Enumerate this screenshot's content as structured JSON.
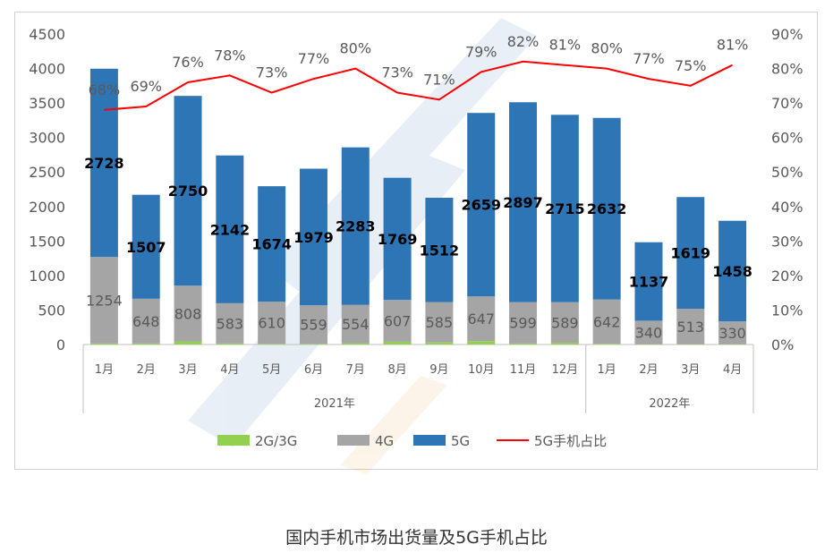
{
  "caption": "国内手机市场出货量及5G手机占比",
  "chart_data": {
    "type": "bar",
    "stacked": true,
    "categories": [
      "1月",
      "2月",
      "3月",
      "4月",
      "5月",
      "6月",
      "7月",
      "8月",
      "9月",
      "10月",
      "11月",
      "12月",
      "1月",
      "2月",
      "3月",
      "4月"
    ],
    "groups": [
      {
        "label": "2021年",
        "count": 12
      },
      {
        "label": "2022年",
        "count": 4
      }
    ],
    "series": [
      {
        "name": "2G/3G",
        "kind": "bar",
        "color": "#92d050",
        "values": [
          15,
          15,
          45,
          15,
          10,
          10,
          20,
          40,
          30,
          50,
          15,
          25,
          10,
          5,
          5,
          5
        ]
      },
      {
        "name": "4G",
        "kind": "bar",
        "color": "#a5a5a5",
        "values": [
          1254,
          648,
          808,
          583,
          610,
          559,
          554,
          607,
          585,
          647,
          599,
          589,
          642,
          340,
          513,
          330
        ]
      },
      {
        "name": "5G",
        "kind": "bar",
        "color": "#2e75b6",
        "values": [
          2728,
          1507,
          2750,
          2142,
          1674,
          1979,
          2283,
          1769,
          1512,
          2659,
          2897,
          2715,
          2632,
          1137,
          1619,
          1458
        ]
      },
      {
        "name": "5G手机占比",
        "kind": "line",
        "axis": "right",
        "color": "#ff0000",
        "values": [
          68,
          69,
          76,
          78,
          73,
          77,
          80,
          73,
          71,
          79,
          82,
          81,
          80,
          77,
          75,
          81
        ],
        "labels": [
          "68%",
          "69%",
          "76%",
          "78%",
          "73%",
          "77%",
          "80%",
          "73%",
          "71%",
          "79%",
          "82%",
          "81%",
          "80%",
          "77%",
          "75%",
          "81%"
        ]
      }
    ],
    "left_axis": {
      "min": 0,
      "max": 4500,
      "ticks": [
        "0",
        "500",
        "1000",
        "1500",
        "2000",
        "2500",
        "3000",
        "3500",
        "4000",
        "4500"
      ]
    },
    "right_axis": {
      "min": 0,
      "max": 90,
      "ticks": [
        "0%",
        "10%",
        "20%",
        "30%",
        "40%",
        "50%",
        "60%",
        "70%",
        "80%",
        "90%"
      ]
    },
    "legend_position": "bottom",
    "grid": false
  }
}
